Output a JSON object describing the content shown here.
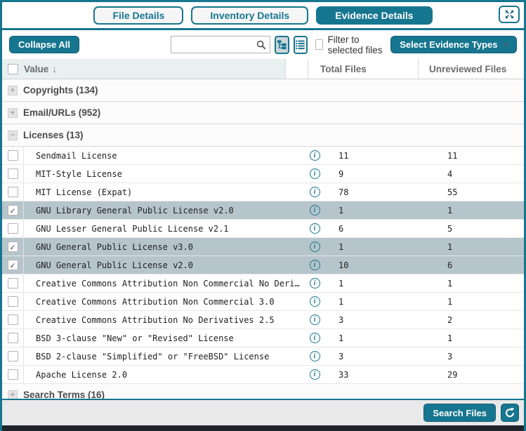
{
  "colors": {
    "accent": "#17768F",
    "row_highlight": "#B6C5CB",
    "header_tint": "#E8F1F0",
    "footer_bg": "#E9E9E9",
    "dark_strip": "#20252B"
  },
  "tabs": {
    "items": [
      {
        "label": "File Details",
        "active": false
      },
      {
        "label": "Inventory Details",
        "active": false
      },
      {
        "label": "Evidence Details",
        "active": true
      }
    ]
  },
  "icons": {
    "expand": "expand-arrows",
    "search": "magnifier",
    "tree_view": "hierarchy-tree",
    "list_view": "bulleted-list",
    "info": "i",
    "refresh": "circular-arrow",
    "sort": "↓",
    "caret": "▾",
    "collapsed_glyph": "+",
    "expanded_glyph": "−",
    "check_glyph": "✓"
  },
  "toolbar": {
    "collapse_all": "Collapse All",
    "search_value": "",
    "search_placeholder": "",
    "filter_label": "Filter to selected files",
    "filter_checked": false,
    "select_evidence_types": "Select Evidence Types"
  },
  "table": {
    "header": {
      "value": "Value",
      "total": "Total Files",
      "unreviewed": "Unreviewed Files"
    },
    "groups": [
      {
        "label": "Copyrights (134)",
        "expanded": false,
        "rows": []
      },
      {
        "label": "Email/URLs (952)",
        "expanded": false,
        "rows": []
      },
      {
        "label": "Licenses (13)",
        "expanded": true,
        "rows": [
          {
            "value": "Sendmail License",
            "total": "11",
            "unreviewed": "11",
            "checked": false
          },
          {
            "value": "MIT-Style License",
            "total": "9",
            "unreviewed": "4",
            "checked": false
          },
          {
            "value": "MIT License (Expat)",
            "total": "78",
            "unreviewed": "55",
            "checked": false
          },
          {
            "value": "GNU Library General Public License v2.0",
            "total": "1",
            "unreviewed": "1",
            "checked": true
          },
          {
            "value": "GNU Lesser General Public License v2.1",
            "total": "6",
            "unreviewed": "5",
            "checked": false
          },
          {
            "value": "GNU General Public License v3.0",
            "total": "1",
            "unreviewed": "1",
            "checked": true
          },
          {
            "value": "GNU General Public License v2.0",
            "total": "10",
            "unreviewed": "6",
            "checked": true
          },
          {
            "value": "Creative Commons Attribution Non Commercial No Deri…",
            "total": "1",
            "unreviewed": "1",
            "checked": false
          },
          {
            "value": "Creative Commons Attribution Non Commercial 3.0",
            "total": "1",
            "unreviewed": "1",
            "checked": false
          },
          {
            "value": "Creative Commons Attribution No Derivatives 2.5",
            "total": "3",
            "unreviewed": "2",
            "checked": false
          },
          {
            "value": "BSD 3-clause \"New\" or \"Revised\" License",
            "total": "1",
            "unreviewed": "1",
            "checked": false
          },
          {
            "value": "BSD 2-clause \"Simplified\" or \"FreeBSD\" License",
            "total": "3",
            "unreviewed": "3",
            "checked": false
          },
          {
            "value": "Apache License 2.0",
            "total": "33",
            "unreviewed": "29",
            "checked": false
          }
        ]
      },
      {
        "label": "Search Terms (16)",
        "expanded": false,
        "rows": []
      }
    ]
  },
  "footer": {
    "search_files": "Search Files"
  }
}
